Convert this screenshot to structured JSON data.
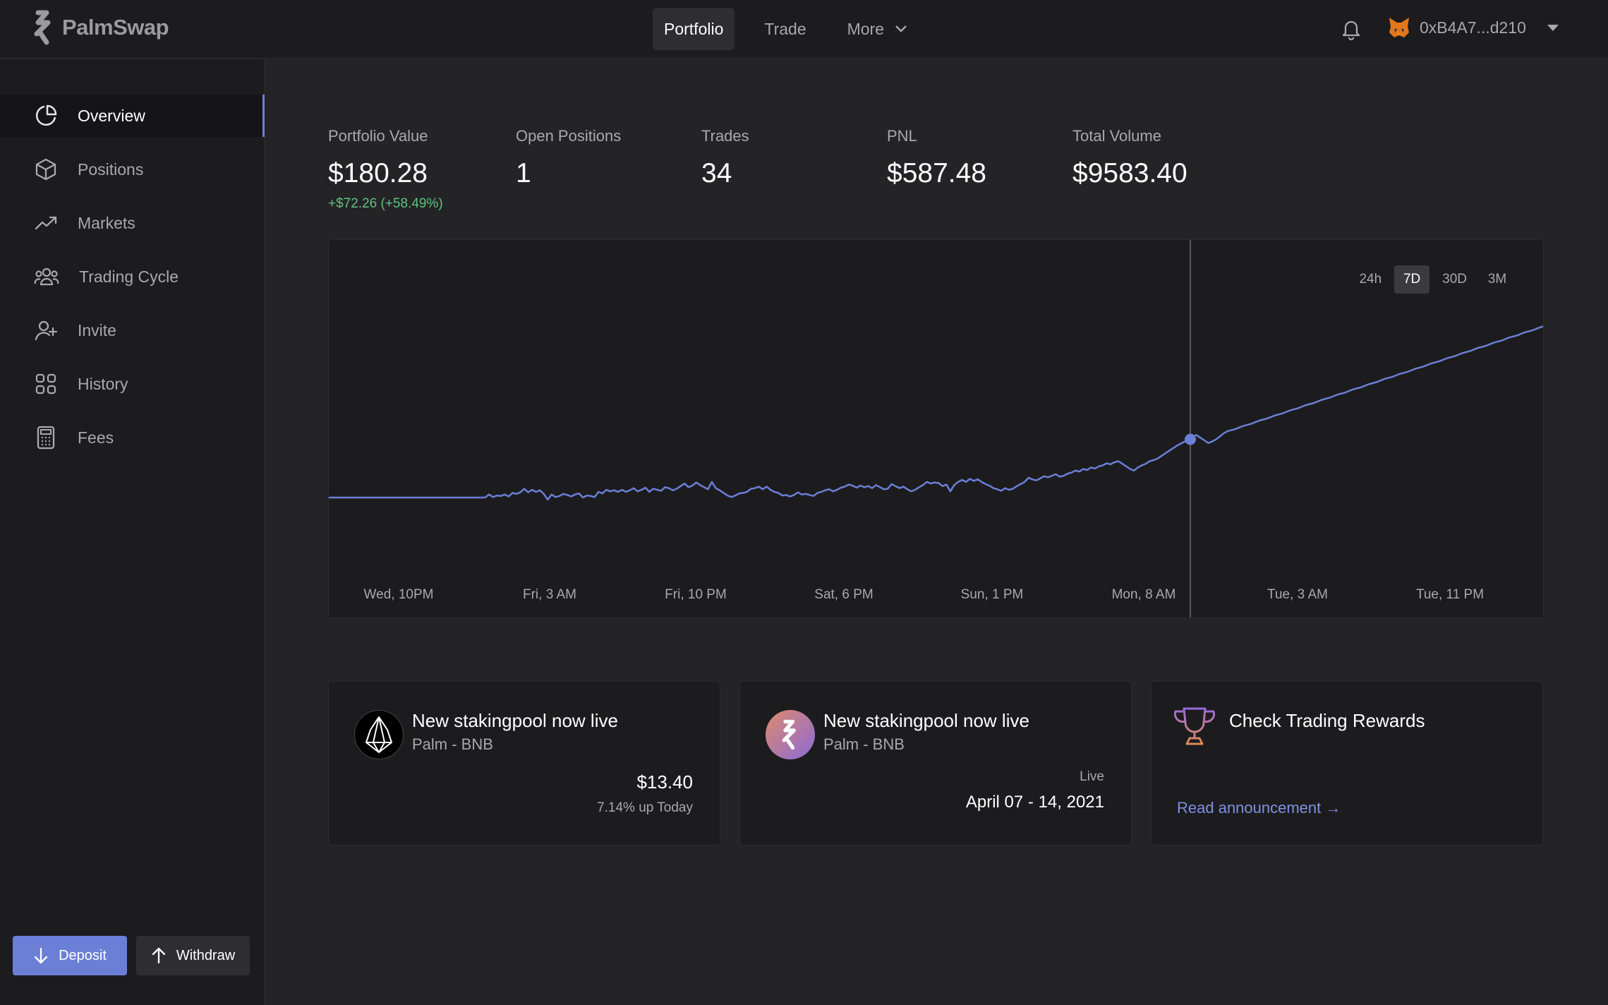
{
  "app": {
    "name": "PalmSwap"
  },
  "nav": {
    "items": [
      {
        "label": "Portfolio",
        "active": true
      },
      {
        "label": "Trade",
        "active": false
      },
      {
        "label": "More",
        "active": false
      }
    ]
  },
  "account": {
    "address": "0xB4A7...d210"
  },
  "sidebar": {
    "items": [
      {
        "label": "Overview",
        "icon": "pie-chart-icon",
        "active": true
      },
      {
        "label": "Positions",
        "icon": "box-icon"
      },
      {
        "label": "Markets",
        "icon": "trending-up-icon"
      },
      {
        "label": "Trading Cycle",
        "icon": "users-icon"
      },
      {
        "label": "Invite",
        "icon": "user-plus-icon"
      },
      {
        "label": "History",
        "icon": "grid-icon"
      },
      {
        "label": "Fees",
        "icon": "calculator-icon"
      }
    ],
    "deposit_label": "Deposit",
    "withdraw_label": "Withdraw"
  },
  "stats": {
    "portfolio_value": {
      "label": "Portfolio Value",
      "value": "$180.28",
      "change": "+$72.26 (+58.49%)"
    },
    "open_positions": {
      "label": "Open Positions",
      "value": "1"
    },
    "trades": {
      "label": "Trades",
      "value": "34"
    },
    "pnl": {
      "label": "PNL",
      "value": "$587.48"
    },
    "total_volume": {
      "label": "Total Volume",
      "value": "$9583.40"
    }
  },
  "chart_data": {
    "type": "line",
    "ranges": [
      "24h",
      "7D",
      "30D",
      "3M"
    ],
    "active_range": "7D",
    "x_ticks": [
      "Wed, 10PM",
      "Fri, 3 AM",
      "Fri, 10 PM",
      "Sat, 6 PM",
      "Sun, 1 PM",
      "Mon, 8 AM",
      "Tue, 3 AM",
      "Tue, 11 PM"
    ],
    "series": [
      {
        "color": "#6b7fd7",
        "values": [
          0,
          0,
          0,
          0,
          0,
          0,
          0,
          0,
          0,
          0,
          0,
          0,
          0,
          0,
          0,
          0,
          0,
          0,
          0,
          0,
          0,
          0,
          0,
          0,
          0,
          0,
          0,
          0,
          0,
          0,
          0,
          0,
          0,
          0,
          0,
          0,
          0,
          0,
          0,
          0,
          0,
          -6,
          -1,
          -4,
          -3,
          -6,
          -2,
          -9,
          -7,
          -10,
          -17,
          -10,
          -15,
          -11,
          -14,
          -7,
          4,
          -6,
          -1,
          -3,
          -7,
          -5,
          -2,
          -6,
          -8,
          0,
          -4,
          -3,
          -1,
          -11,
          -8,
          -15,
          -12,
          -14,
          -11,
          -15,
          -11,
          -14,
          -18,
          -12,
          -15,
          -19,
          -11,
          -17,
          -15,
          -13,
          -20,
          -18,
          -14,
          -17,
          -22,
          -27,
          -20,
          -23,
          -29,
          -24,
          -20,
          -16,
          -30,
          -18,
          -14,
          -9,
          -4,
          -1,
          -4,
          -8,
          -9,
          -11,
          -17,
          -18,
          -21,
          -16,
          -21,
          -15,
          -11,
          -9,
          -4,
          -5,
          -2,
          -5,
          -10,
          -6,
          -7,
          -5,
          -3,
          -9,
          -11,
          -14,
          -16,
          -12,
          -15,
          -19,
          -21,
          -25,
          -23,
          -19,
          -23,
          -20,
          -22,
          -18,
          -24,
          -20,
          -16,
          -17,
          -26,
          -22,
          -18,
          -21,
          -16,
          -12,
          -15,
          -20,
          -24,
          -30,
          -27,
          -29,
          -28,
          -22,
          -25,
          -12,
          -24,
          -30,
          -34,
          -30,
          -36,
          -32,
          -35,
          -30,
          -26,
          -23,
          -18,
          -16,
          -13,
          -18,
          -15,
          -17,
          -22,
          -26,
          -30,
          -38,
          -35,
          -33,
          -37,
          -41,
          -39,
          -42,
          -45,
          -40,
          -42,
          -46,
          -48,
          -52,
          -50,
          -55,
          -53,
          -58,
          -56,
          -60,
          -62,
          -66,
          -64,
          -68,
          -70,
          -65,
          -60,
          -55,
          -52,
          -58,
          -62,
          -65,
          -70,
          -72,
          -75,
          -80,
          -85,
          -90,
          -95,
          -100,
          -104,
          -108,
          -112,
          -118,
          -120,
          -115,
          -110,
          -105,
          -108,
          -112,
          -118,
          -124,
          -128,
          -130,
          -132,
          -135,
          -138,
          -140,
          -142,
          -145,
          -148,
          -150,
          -152,
          -155,
          -158,
          -160,
          -162,
          -165,
          -168,
          -170,
          -172,
          -175,
          -178,
          -180,
          -182,
          -185,
          -188,
          -190,
          -192,
          -195,
          -198,
          -200,
          -202,
          -205,
          -208,
          -210,
          -212,
          -215,
          -218,
          -220,
          -222,
          -225,
          -228,
          -230,
          -232,
          -235,
          -238,
          -240,
          -242,
          -245,
          -248,
          -250,
          -252,
          -255,
          -258,
          -260,
          -262,
          -265,
          -268,
          -270,
          -272,
          -275,
          -278,
          -280,
          -282,
          -285,
          -288,
          -290,
          -292,
          -295,
          -298,
          -300,
          -302,
          -305,
          -308,
          -310,
          -312,
          -315,
          -318,
          -320,
          -322,
          -325,
          -328,
          -330
        ]
      }
    ]
  },
  "cards": [
    {
      "icon": "eos-icon",
      "title": "New stakingpool now live",
      "subtitle": "Palm - BNB",
      "value": "$13.40",
      "note": "7.14% up Today"
    },
    {
      "icon": "palm-icon",
      "title": "New stakingpool now live",
      "subtitle": "Palm - BNB",
      "status": "Live",
      "dates": "April 07 - 14, 2021"
    },
    {
      "icon": "trophy-icon",
      "title": "Check Trading Rewards",
      "link": "Read announcement →"
    }
  ]
}
